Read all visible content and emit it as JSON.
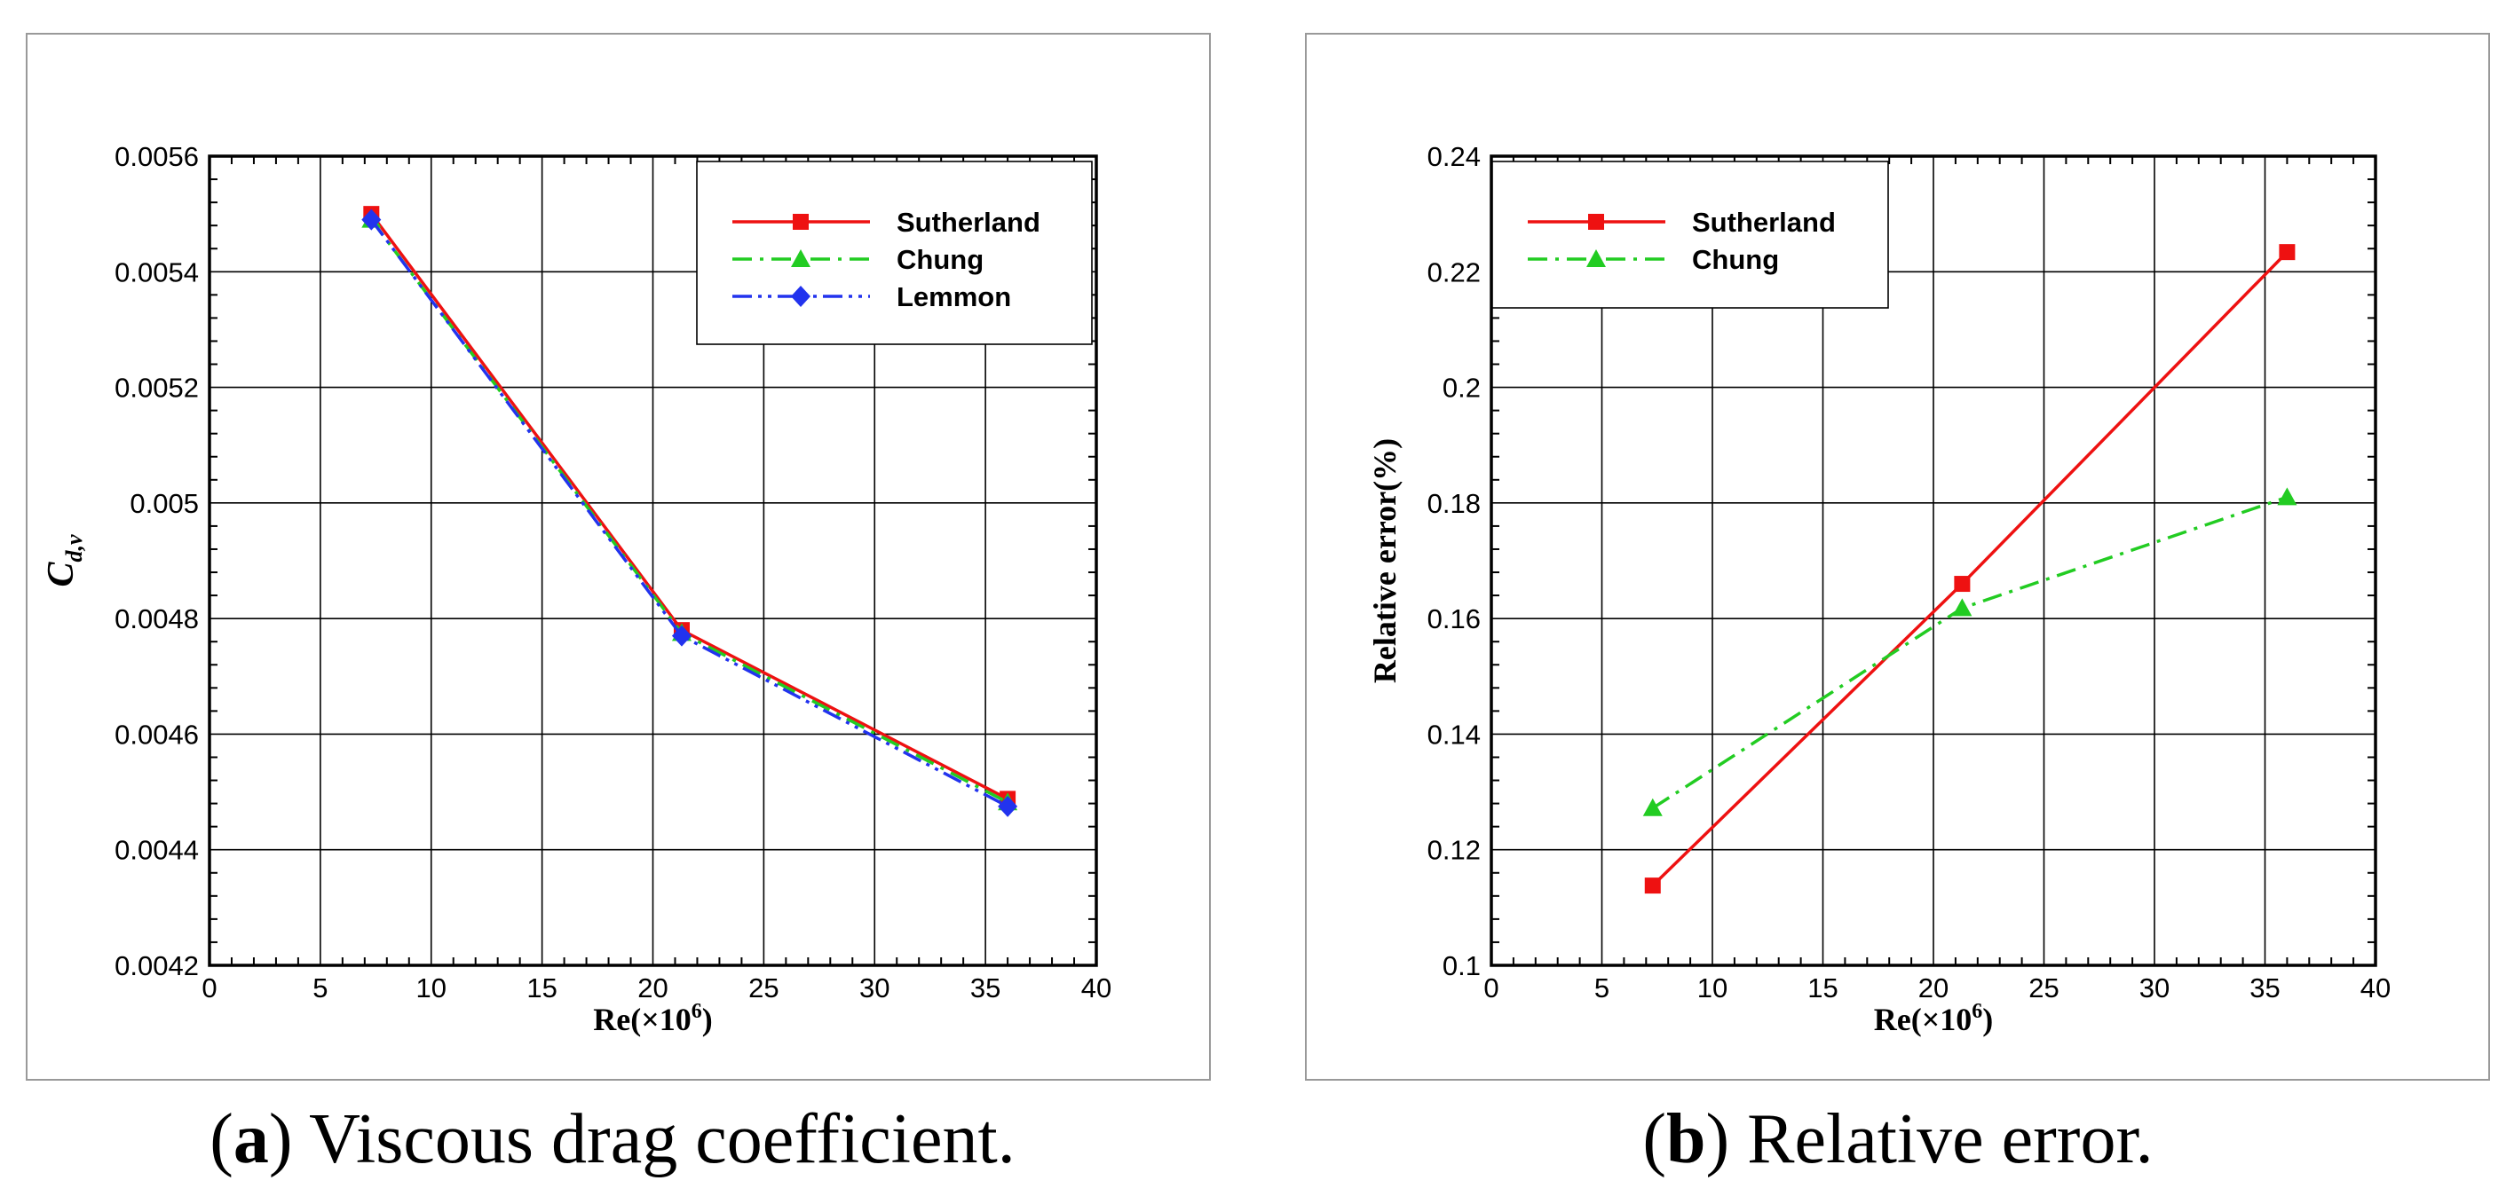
{
  "chart_data": [
    {
      "type": "line",
      "title": "",
      "caption_tag": "a",
      "caption_open": "(",
      "caption_close": ")",
      "caption_text": " Viscous drag coefficient.",
      "xlabel_main": "Re(×10",
      "xlabel_sup": "6",
      "xlabel_close": ")",
      "ylabel_main": "C",
      "ylabel_sub": "d,v",
      "xlim": [
        0,
        40
      ],
      "ylim": [
        0.0042,
        0.0056
      ],
      "x_ticks": [
        0,
        5,
        10,
        15,
        20,
        25,
        30,
        35,
        40
      ],
      "x_tick_labels": [
        "0",
        "5",
        "10",
        "15",
        "20",
        "25",
        "30",
        "35",
        "40"
      ],
      "y_ticks": [
        0.0042,
        0.0044,
        0.0046,
        0.0048,
        0.005,
        0.0052,
        0.0054,
        0.0056
      ],
      "y_tick_labels": [
        "0.0042",
        "0.0044",
        "0.0046",
        "0.0048",
        "0.005",
        "0.0052",
        "0.0054",
        "0.0056"
      ],
      "grid": true,
      "legend_position": "top-right",
      "series": [
        {
          "name": "Sutherland",
          "color": "#ee1111",
          "marker": "square",
          "dash": "solid",
          "x": [
            7.3,
            21.3,
            36.0
          ],
          "y": [
            0.0055,
            0.00478,
            0.004488
          ]
        },
        {
          "name": "Chung",
          "color": "#22cc22",
          "marker": "triangle",
          "dash": "dashdot",
          "x": [
            7.3,
            21.3,
            36.0
          ],
          "y": [
            0.00549,
            0.004775,
            0.004482
          ]
        },
        {
          "name": "Lemmon",
          "color": "#2233ee",
          "marker": "diamond",
          "dash": "dashdotdot",
          "x": [
            7.3,
            21.3,
            36.0
          ],
          "y": [
            0.00549,
            0.00477,
            0.004475
          ]
        }
      ]
    },
    {
      "type": "line",
      "title": "",
      "caption_tag": "b",
      "caption_open": "(",
      "caption_close": ")",
      "caption_text": " Relative error.",
      "xlabel_main": "Re(×10",
      "xlabel_sup": "6",
      "xlabel_close": ")",
      "ylabel_main": "Relative error(%)",
      "ylabel_sub": "",
      "xlim": [
        0,
        40
      ],
      "ylim": [
        0.1,
        0.24
      ],
      "x_ticks": [
        0,
        5,
        10,
        15,
        20,
        25,
        30,
        35,
        40
      ],
      "x_tick_labels": [
        "0",
        "5",
        "10",
        "15",
        "20",
        "25",
        "30",
        "35",
        "40"
      ],
      "y_ticks": [
        0.1,
        0.12,
        0.14,
        0.16,
        0.18,
        0.2,
        0.22,
        0.24
      ],
      "y_tick_labels": [
        "0.1",
        "0.12",
        "0.14",
        "0.16",
        "0.18",
        "0.2",
        "0.22",
        "0.24"
      ],
      "grid": true,
      "legend_position": "top-left",
      "series": [
        {
          "name": "Sutherland",
          "color": "#ee1111",
          "marker": "square",
          "dash": "solid",
          "x": [
            7.3,
            21.3,
            36.0
          ],
          "y": [
            0.1138,
            0.166,
            0.2234
          ]
        },
        {
          "name": "Chung",
          "color": "#22cc22",
          "marker": "triangle",
          "dash": "dashdot",
          "x": [
            7.3,
            21.3,
            36.0
          ],
          "y": [
            0.1272,
            0.1618,
            0.181
          ]
        }
      ]
    }
  ]
}
